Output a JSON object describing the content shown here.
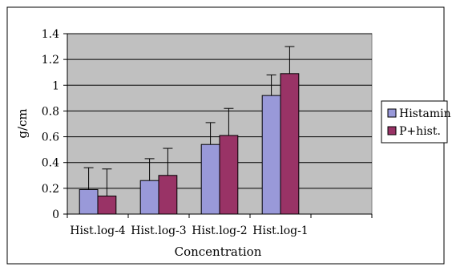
{
  "chart_data": {
    "type": "bar",
    "title": "",
    "xlabel": "Concentration",
    "ylabel": "g/cm",
    "categories": [
      "Hist.log-4",
      "Hist.log-3",
      "Hist.log-2",
      "Hist.log-1",
      ""
    ],
    "series": [
      {
        "name": "Histamin",
        "color": "#9999d9",
        "values": [
          0.19,
          0.26,
          0.54,
          0.92,
          null
        ],
        "errors": [
          0.17,
          0.17,
          0.17,
          0.16,
          null
        ]
      },
      {
        "name": "P+hist.",
        "color": "#993366",
        "values": [
          0.14,
          0.3,
          0.61,
          1.09,
          null
        ],
        "errors": [
          0.21,
          0.21,
          0.21,
          0.21,
          null
        ]
      }
    ],
    "ylim": [
      0,
      1.4
    ],
    "yticks": [
      "0",
      "0.2",
      "0.4",
      "0.6",
      "0.8",
      "1",
      "1.2",
      "1.4"
    ],
    "grid": true,
    "legend_position": "right",
    "plot_background": "#c0c0c0"
  }
}
